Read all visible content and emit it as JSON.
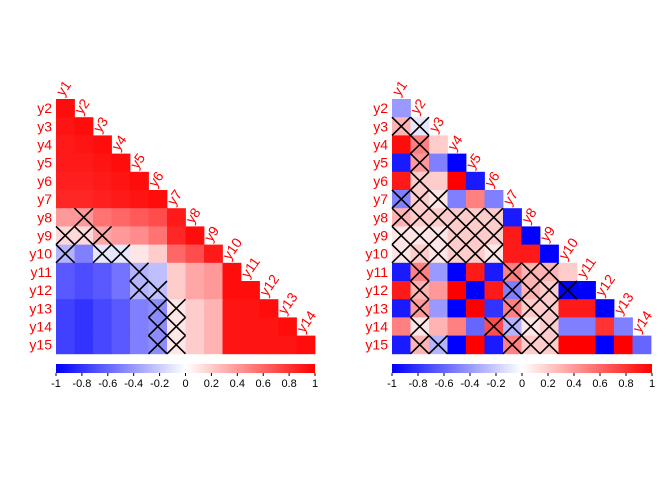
{
  "chart_data": [
    {
      "type": "heatmap",
      "variables": [
        "y1",
        "y2",
        "y3",
        "y4",
        "y5",
        "y6",
        "y7",
        "y8",
        "y9",
        "y10",
        "y11",
        "y12",
        "y13",
        "y14",
        "y15"
      ],
      "row_labels": [
        "y2",
        "y3",
        "y4",
        "y5",
        "y6",
        "y7",
        "y8",
        "y9",
        "y10",
        "y11",
        "y12",
        "y13",
        "y14",
        "y15"
      ],
      "col_labels": [
        "y1",
        "y2",
        "y3",
        "y4",
        "y5",
        "y6",
        "y7",
        "y8",
        "y9",
        "y10",
        "y11",
        "y12",
        "y13",
        "y14"
      ],
      "layout": "lower-triangle",
      "values": [
        [
          0.95
        ],
        [
          0.92,
          0.95
        ],
        [
          0.9,
          0.92,
          0.95
        ],
        [
          0.9,
          0.9,
          0.92,
          0.95
        ],
        [
          0.88,
          0.88,
          0.9,
          0.92,
          0.95
        ],
        [
          0.85,
          0.85,
          0.88,
          0.9,
          0.92,
          0.95
        ],
        [
          0.4,
          0.4,
          0.55,
          0.6,
          0.65,
          0.7,
          0.9
        ],
        [
          0.15,
          0.15,
          0.35,
          0.4,
          0.45,
          0.55,
          0.85,
          0.95
        ],
        [
          -0.3,
          -0.5,
          -0.1,
          -0.1,
          0.1,
          0.2,
          0.6,
          0.7,
          0.9
        ],
        [
          -0.65,
          -0.7,
          -0.65,
          -0.55,
          -0.3,
          -0.25,
          0.2,
          0.35,
          0.4,
          0.95
        ],
        [
          -0.65,
          -0.7,
          -0.65,
          -0.55,
          -0.3,
          -0.25,
          0.2,
          0.35,
          0.4,
          0.95,
          0.95
        ],
        [
          -0.75,
          -0.8,
          -0.72,
          -0.65,
          -0.5,
          -0.45,
          0.1,
          0.2,
          0.3,
          0.92,
          0.92,
          0.95
        ],
        [
          -0.75,
          -0.8,
          -0.72,
          -0.65,
          -0.5,
          -0.45,
          0.1,
          0.2,
          0.3,
          0.92,
          0.92,
          0.92,
          0.95
        ],
        [
          -0.75,
          -0.8,
          -0.72,
          -0.65,
          -0.5,
          -0.45,
          0.1,
          0.2,
          0.3,
          0.92,
          0.92,
          0.92,
          0.92,
          0.95
        ]
      ],
      "crossed": [
        [
          false
        ],
        [
          false,
          false
        ],
        [
          false,
          false,
          false
        ],
        [
          false,
          false,
          false,
          false
        ],
        [
          false,
          false,
          false,
          false,
          false
        ],
        [
          false,
          false,
          false,
          false,
          false,
          false
        ],
        [
          false,
          true,
          false,
          false,
          false,
          false,
          false
        ],
        [
          true,
          true,
          true,
          false,
          false,
          false,
          false,
          false
        ],
        [
          true,
          false,
          true,
          true,
          false,
          false,
          false,
          false,
          false
        ],
        [
          false,
          false,
          false,
          false,
          true,
          false,
          false,
          false,
          false,
          false
        ],
        [
          false,
          false,
          false,
          false,
          true,
          true,
          false,
          false,
          false,
          false,
          false
        ],
        [
          false,
          false,
          false,
          false,
          false,
          true,
          true,
          false,
          false,
          false,
          false,
          false
        ],
        [
          false,
          false,
          false,
          false,
          false,
          true,
          true,
          false,
          false,
          false,
          false,
          false,
          false
        ],
        [
          false,
          false,
          false,
          false,
          false,
          true,
          true,
          false,
          false,
          false,
          false,
          false,
          false,
          false
        ]
      ],
      "colorbar": {
        "range": [
          -1,
          1
        ],
        "ticks": [
          "-1",
          "-0.8",
          "-0.6",
          "-0.4",
          "-0.2",
          "0",
          "0.2",
          "0.4",
          "0.6",
          "0.8",
          "1"
        ]
      },
      "colors": {
        "negative": "#0000ff",
        "zero": "#ffffff",
        "positive": "#ff0000",
        "label": "#ff0000"
      }
    },
    {
      "type": "heatmap",
      "variables": [
        "y1",
        "y2",
        "y3",
        "y4",
        "y5",
        "y6",
        "y7",
        "y8",
        "y9",
        "y10",
        "y11",
        "y12",
        "y13",
        "y14",
        "y15"
      ],
      "row_labels": [
        "y2",
        "y3",
        "y4",
        "y5",
        "y6",
        "y7",
        "y8",
        "y9",
        "y10",
        "y11",
        "y12",
        "y13",
        "y14",
        "y15"
      ],
      "col_labels": [
        "y1",
        "y2",
        "y3",
        "y4",
        "y5",
        "y6",
        "y7",
        "y8",
        "y9",
        "y10",
        "y11",
        "y12",
        "y13",
        "y14"
      ],
      "layout": "lower-triangle",
      "values": [
        [
          -0.4
        ],
        [
          0.3,
          -0.1
        ],
        [
          0.95,
          0.5,
          0.2
        ],
        [
          -0.9,
          0.4,
          -0.5,
          -1.0
        ],
        [
          0.9,
          0.2,
          0.2,
          1.0,
          -0.9
        ],
        [
          -0.5,
          0.2,
          0.1,
          -0.5,
          0.5,
          -0.5
        ],
        [
          0.3,
          0.2,
          0.2,
          0.2,
          0.2,
          0.2,
          -0.9
        ],
        [
          0.1,
          0.1,
          0.1,
          0.2,
          0.2,
          0.2,
          0.9,
          -1.0
        ],
        [
          0.1,
          0.2,
          0.1,
          0.2,
          0.2,
          0.1,
          0.9,
          0.9,
          -1.0
        ],
        [
          -0.9,
          0.5,
          -0.4,
          -1.0,
          0.9,
          -0.9,
          0.5,
          0.3,
          0.3,
          0.2
        ],
        [
          0.9,
          0.3,
          0.4,
          1.0,
          -1.0,
          0.9,
          -0.5,
          0.3,
          0.2,
          -1.0,
          -1.0
        ],
        [
          -0.9,
          0.4,
          -0.4,
          -1.0,
          1.0,
          -0.8,
          0.5,
          0.2,
          0.2,
          0.9,
          0.9,
          -1.0
        ],
        [
          0.5,
          0.1,
          0.3,
          0.5,
          -0.6,
          0.7,
          -0.3,
          0.1,
          0.2,
          -0.5,
          -0.5,
          0.8,
          -0.5
        ],
        [
          -0.9,
          0.3,
          -0.3,
          -1.0,
          1.0,
          -0.9,
          0.5,
          0.2,
          0.2,
          1.0,
          1.0,
          -1.0,
          1.0,
          -0.6
        ]
      ],
      "crossed": [
        [
          false
        ],
        [
          true,
          true
        ],
        [
          false,
          true,
          false
        ],
        [
          false,
          true,
          false,
          false
        ],
        [
          false,
          true,
          false,
          false,
          false
        ],
        [
          true,
          true,
          true,
          false,
          false,
          false
        ],
        [
          true,
          true,
          true,
          true,
          true,
          true,
          false
        ],
        [
          true,
          true,
          true,
          true,
          true,
          true,
          false,
          false
        ],
        [
          true,
          true,
          true,
          true,
          true,
          true,
          false,
          false,
          false
        ],
        [
          false,
          true,
          false,
          false,
          false,
          false,
          true,
          true,
          true,
          false
        ],
        [
          false,
          true,
          false,
          false,
          false,
          false,
          true,
          true,
          true,
          true,
          false
        ],
        [
          false,
          true,
          false,
          false,
          false,
          false,
          true,
          true,
          true,
          false,
          false,
          false
        ],
        [
          false,
          true,
          false,
          false,
          false,
          true,
          true,
          true,
          true,
          false,
          false,
          false,
          false
        ],
        [
          false,
          true,
          true,
          false,
          false,
          false,
          true,
          true,
          true,
          false,
          false,
          false,
          false,
          false
        ]
      ],
      "colorbar": {
        "range": [
          -1,
          1
        ],
        "ticks": [
          "-1",
          "-0.8",
          "-0.6",
          "-0.4",
          "-0.2",
          "0",
          "0.2",
          "0.4",
          "0.6",
          "0.8",
          "1"
        ]
      },
      "colors": {
        "negative": "#0000ff",
        "zero": "#ffffff",
        "positive": "#ff0000",
        "label": "#ff0000"
      }
    }
  ]
}
